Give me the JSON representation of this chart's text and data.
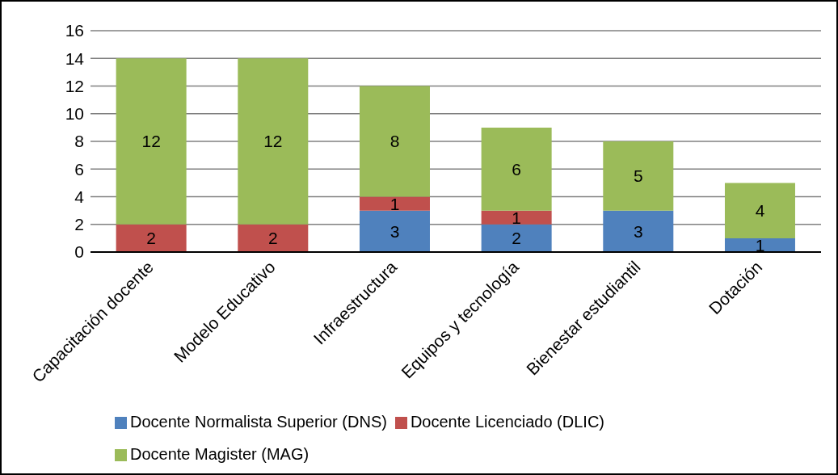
{
  "chart_data": {
    "type": "bar",
    "stacked": true,
    "categories": [
      "Capacitación docente",
      "Modelo Educativo",
      "Infraestructura",
      "Equipos y tecnología",
      "Bienestar estudiantil",
      "Dotación"
    ],
    "series": [
      {
        "name": "Docente Normalista Superior (DNS)",
        "color": "#4f81bd",
        "values": [
          null,
          null,
          3,
          2,
          3,
          1
        ]
      },
      {
        "name": "Docente Licenciado (DLIC)",
        "color": "#c0504d",
        "values": [
          2,
          2,
          1,
          1,
          null,
          null
        ]
      },
      {
        "name": "Docente Magister (MAG)",
        "color": "#9bbb59",
        "values": [
          12,
          12,
          8,
          6,
          5,
          4
        ]
      }
    ],
    "ylim": [
      0,
      16
    ],
    "yticks": [
      0,
      2,
      4,
      6,
      8,
      10,
      12,
      14,
      16
    ],
    "grid": "y",
    "legend": "bottom",
    "data_labels": true
  }
}
